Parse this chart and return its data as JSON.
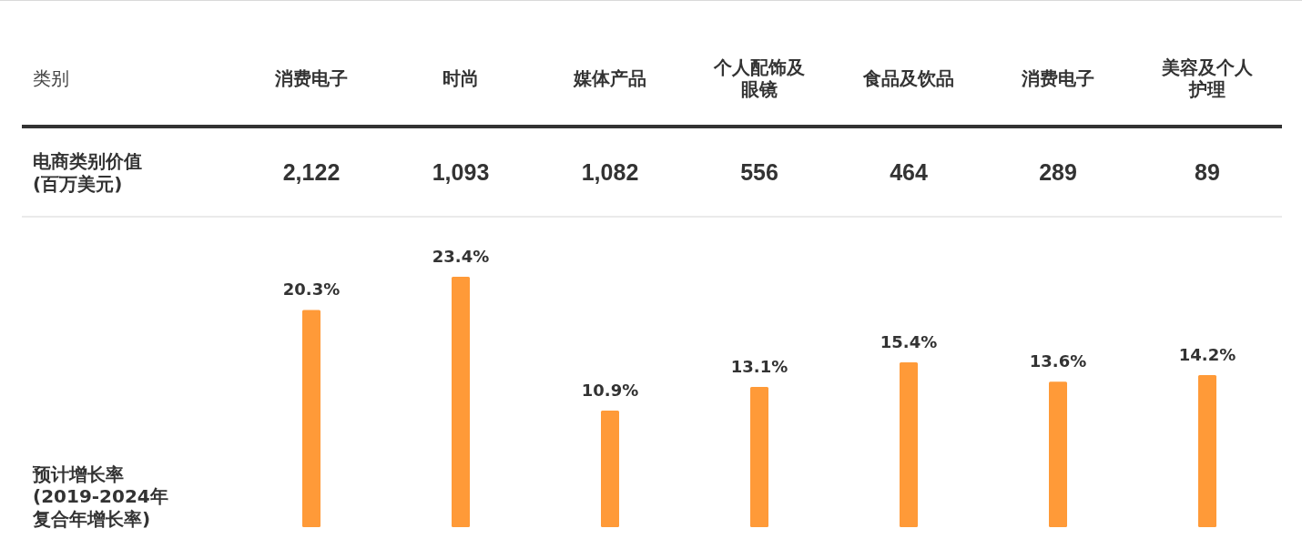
{
  "chart_data": [
    {
      "type": "other",
      "xlabel": "类别",
      "categories": [
        "消费电子",
        "时尚",
        "媒体产品",
        "个人配饰及眼镜",
        "食品及饮品",
        "消费电子",
        "美容及个人护理"
      ],
      "ylabel": "电商类别价值(百万美元)",
      "values": [
        2122,
        1093,
        1082,
        556,
        464,
        289,
        89
      ],
      "value_labels": [
        "2,122",
        "1,093",
        "1,082",
        "556",
        "464",
        "289",
        "89"
      ]
    },
    {
      "type": "bar",
      "categories": [
        null,
        null,
        null,
        null,
        null,
        null,
        null
      ],
      "ylabel": "预计增长率(2019-2024年复合年增长率)",
      "values": [
        20.3,
        23.4,
        10.9,
        13.1,
        15.4,
        13.6,
        14.2
      ],
      "value_labels": [
        "20.3%",
        "23.4%",
        "10.9%",
        "13.1%",
        "15.4%",
        "13.6%",
        "14.2%"
      ],
      "color": "#ff9a38"
    }
  ]
}
